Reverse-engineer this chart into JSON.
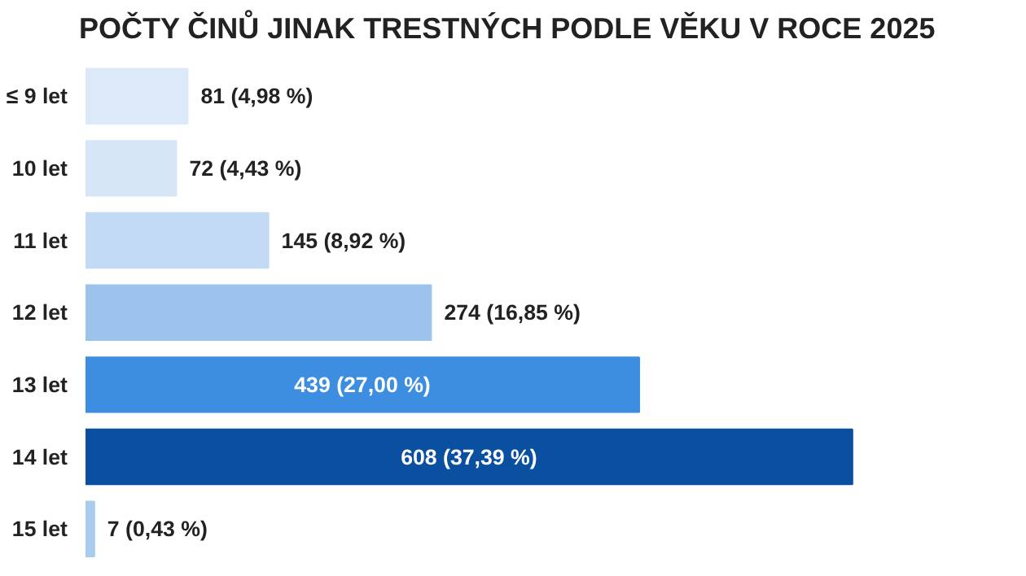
{
  "chart_data": {
    "type": "bar",
    "orientation": "horizontal",
    "title": "POČTY ČINŮ JINAK TRESTNÝCH PODLE VĚKU V ROCE 2025",
    "categories": [
      "≤ 9 let",
      "10 let",
      "11 let",
      "12 let",
      "13 let",
      "14 let",
      "15 let"
    ],
    "values": [
      81,
      72,
      145,
      274,
      439,
      608,
      7
    ],
    "colors": [
      "#dce9f8",
      "#d6e6f7",
      "#c2daf3",
      "#9cc3ec",
      "#3d8ee0",
      "#0a4fa0",
      "#a9cbee"
    ],
    "value_labels": [
      "81 (4,98 %)",
      "72 (4,43 %)",
      "145 (8,92 %)",
      "274 (16,85 %)",
      "439 (27,00 %)",
      "608 (37,39 %)",
      "7 (0,43 %)"
    ],
    "tick_labels": "y",
    "grid": false
  }
}
